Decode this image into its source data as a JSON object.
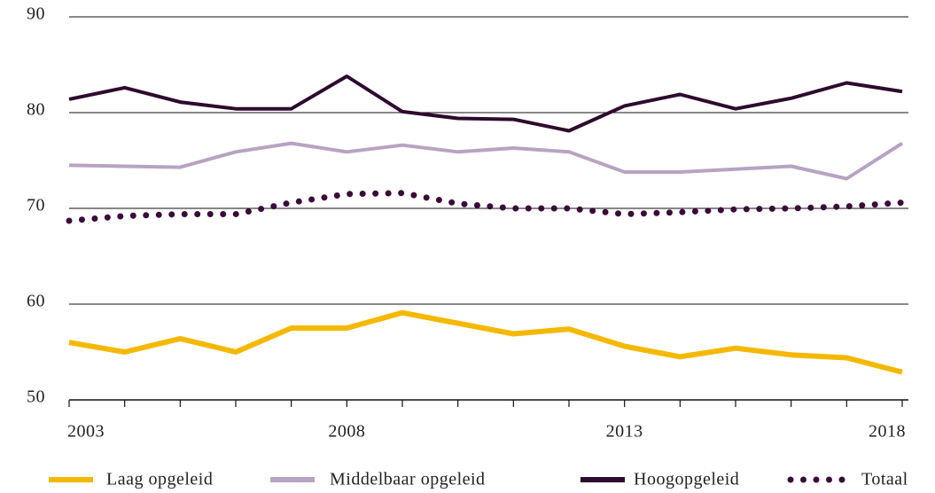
{
  "chart_data": {
    "type": "line",
    "x": [
      2003,
      2004,
      2005,
      2006,
      2007,
      2008,
      2009,
      2010,
      2011,
      2012,
      2013,
      2014,
      2015,
      2016,
      2017,
      2018
    ],
    "xlim": [
      2003,
      2018
    ],
    "xticks": [
      2003,
      2008,
      2013,
      2018
    ],
    "ylim": [
      50,
      90
    ],
    "yticks": [
      50,
      60,
      70,
      80,
      90
    ],
    "grid": true,
    "legend": "bottom",
    "series": [
      {
        "name": "Laag opgeleid",
        "color": "#f5b800",
        "style": "solid",
        "values": [
          56.0,
          55.0,
          56.4,
          55.0,
          57.5,
          57.5,
          59.1,
          58.0,
          56.9,
          57.4,
          55.6,
          54.5,
          55.4,
          54.7,
          54.4,
          52.9
        ]
      },
      {
        "name": "Middelbaar opgeleid",
        "color": "#b8a3c2",
        "style": "solid",
        "values": [
          74.5,
          74.4,
          74.3,
          75.9,
          76.8,
          75.9,
          76.6,
          75.9,
          76.3,
          75.9,
          73.8,
          73.8,
          74.1,
          74.4,
          73.1,
          76.8
        ]
      },
      {
        "name": "Hoogopgeleid",
        "color": "#2d0a2e",
        "style": "solid",
        "values": [
          81.4,
          82.6,
          81.1,
          80.4,
          80.4,
          83.8,
          80.1,
          79.4,
          79.3,
          78.1,
          80.7,
          81.9,
          80.4,
          81.5,
          83.1,
          82.2
        ]
      },
      {
        "name": "Totaal",
        "color": "#3a0a3a",
        "style": "dotted",
        "values": [
          68.7,
          69.2,
          69.4,
          69.4,
          70.6,
          71.5,
          71.6,
          70.5,
          70.0,
          70.0,
          69.4,
          69.6,
          69.9,
          70.0,
          70.2,
          70.6
        ]
      }
    ]
  }
}
